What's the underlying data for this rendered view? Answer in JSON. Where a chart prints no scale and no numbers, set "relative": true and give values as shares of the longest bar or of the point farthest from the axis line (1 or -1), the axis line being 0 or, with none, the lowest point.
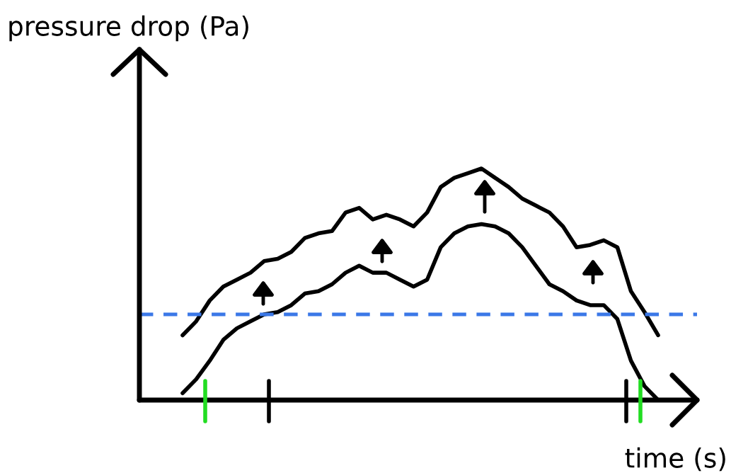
{
  "chart_data": {
    "type": "line",
    "xlabel": "time (s)",
    "ylabel": "pressure drop (Pa)",
    "relative": true,
    "marker": "none",
    "line_style": "solid",
    "categories": [
      null,
      null,
      null,
      null,
      null,
      null,
      null,
      null,
      null,
      null,
      null,
      null,
      null,
      null,
      null,
      null,
      null,
      null,
      null,
      null,
      null,
      null,
      null,
      null,
      null,
      null,
      null,
      null,
      null,
      null,
      null,
      null,
      null,
      null,
      null,
      null
    ],
    "series": [
      {
        "color": "#000000",
        "values": [
          0.28,
          0.34,
          0.43,
          0.49,
          0.52,
          0.55,
          0.6,
          0.61,
          0.64,
          0.7,
          0.72,
          0.73,
          0.81,
          0.83,
          0.78,
          0.8,
          0.78,
          0.75,
          0.81,
          0.92,
          0.96,
          0.98,
          1.0,
          0.96,
          0.92,
          0.87,
          0.84,
          0.81,
          0.75,
          0.66,
          0.67,
          0.69,
          0.66,
          0.47,
          0.38,
          0.28
        ]
      },
      {
        "color": "#000000",
        "values": [
          0.03,
          0.09,
          0.17,
          0.26,
          0.31,
          0.34,
          0.37,
          0.38,
          0.41,
          0.46,
          0.47,
          0.5,
          0.55,
          0.58,
          0.55,
          0.55,
          0.52,
          0.49,
          0.52,
          0.66,
          0.72,
          0.75,
          0.76,
          0.75,
          0.72,
          0.66,
          0.58,
          0.5,
          0.47,
          0.43,
          0.41,
          0.41,
          0.35,
          0.17,
          0.06,
          0.0
        ]
      }
    ],
    "ref_lines": [
      {
        "axis": "y",
        "value": 0.37,
        "color": "#3b78e7",
        "line_style": "dashed"
      }
    ]
  }
}
